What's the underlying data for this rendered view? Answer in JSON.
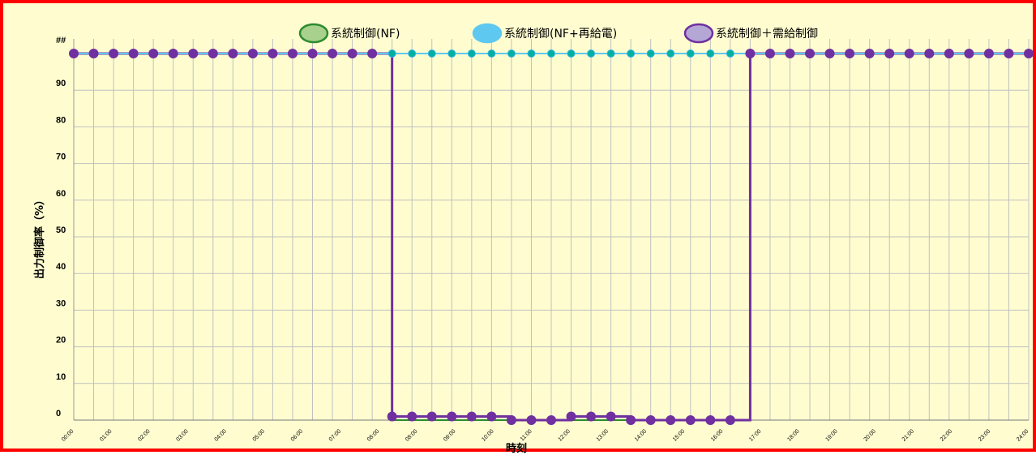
{
  "chart_data": {
    "type": "line",
    "x": [
      "00:00",
      "00:30",
      "01:00",
      "01:30",
      "02:00",
      "02:30",
      "03:00",
      "03:30",
      "04:00",
      "04:30",
      "05:00",
      "05:30",
      "06:00",
      "06:30",
      "07:00",
      "07:30",
      "08:00",
      "08:30",
      "09:00",
      "09:30",
      "10:00",
      "10:30",
      "11:00",
      "11:30",
      "12:00",
      "12:30",
      "13:00",
      "13:30",
      "14:00",
      "14:30",
      "15:00",
      "15:30",
      "16:00",
      "16:30",
      "17:00",
      "17:30",
      "18:00",
      "18:30",
      "19:00",
      "19:30",
      "20:00",
      "20:30",
      "21:00",
      "21:30",
      "22:00",
      "22:30",
      "23:00",
      "23:30",
      "24:00"
    ],
    "x_tick_labels": [
      "00:00",
      "01:00",
      "02:00",
      "03:00",
      "04:00",
      "05:00",
      "06:00",
      "07:00",
      "08:00",
      "08:00",
      "09:00",
      "10:00",
      "11:00",
      "12:00",
      "13:00",
      "14:00",
      "15:00",
      "16:00",
      "17:00",
      "18:00",
      "19:00",
      "20:00",
      "21:00",
      "22:00",
      "23:00",
      "24:00"
    ],
    "y_tick_labels": [
      "0",
      "10",
      "20",
      "30",
      "40",
      "50",
      "60",
      "70",
      "80",
      "90",
      "##"
    ],
    "ylim": [
      0,
      100
    ],
    "xlabel": "時刻",
    "ylabel": "出力制御率（%）",
    "legend_position": "top",
    "grid": true,
    "series": [
      {
        "name": "系統制御(NF)",
        "color": "#2e8b2e",
        "fill": "#a9d18e",
        "values": [
          100,
          100,
          100,
          100,
          100,
          100,
          100,
          100,
          100,
          100,
          100,
          100,
          100,
          100,
          100,
          100,
          0,
          0,
          0,
          0,
          0,
          0,
          0,
          0,
          0,
          0,
          0,
          0,
          0,
          0,
          0,
          0,
          0,
          0,
          100,
          100,
          100,
          100,
          100,
          100,
          100,
          100,
          100,
          100,
          100,
          100,
          100,
          100,
          100
        ]
      },
      {
        "name": "系統制御(NF+再給電)",
        "color": "#5fc8f0",
        "fill": "#5fc8f0",
        "marker_color": "#00b0a0",
        "values": [
          100,
          100,
          100,
          100,
          100,
          100,
          100,
          100,
          100,
          100,
          100,
          100,
          100,
          100,
          100,
          100,
          100,
          100,
          100,
          100,
          100,
          100,
          100,
          100,
          100,
          100,
          100,
          100,
          100,
          100,
          100,
          100,
          100,
          100,
          100,
          100,
          100,
          100,
          100,
          100,
          100,
          100,
          100,
          100,
          100,
          100,
          100,
          100,
          100
        ]
      },
      {
        "name": "系統制御＋需給制御",
        "color": "#7030a0",
        "fill": "#b4a7d6",
        "values": [
          100,
          100,
          100,
          100,
          100,
          100,
          100,
          100,
          100,
          100,
          100,
          100,
          100,
          100,
          100,
          100,
          1,
          1,
          1,
          1,
          1,
          1,
          0,
          0,
          0,
          1,
          1,
          1,
          0,
          0,
          0,
          0,
          0,
          0,
          100,
          100,
          100,
          100,
          100,
          100,
          100,
          100,
          100,
          100,
          100,
          100,
          100,
          100,
          100
        ]
      }
    ]
  }
}
